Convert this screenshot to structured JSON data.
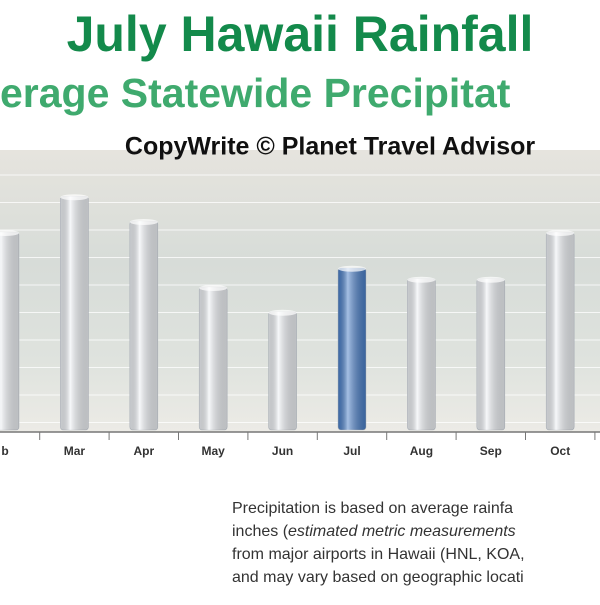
{
  "chart_data": {
    "type": "bar",
    "title": "July Hawaii Rainfall",
    "subtitle": "erage Statewide Precipitat",
    "copyright": "CopyWrite © Planet Travel Advisor",
    "categories": [
      "b",
      "Mar",
      "Apr",
      "May",
      "Jun",
      "Jul",
      "Aug",
      "Sep",
      "Oct",
      null
    ],
    "values": [
      7.2,
      8.5,
      7.6,
      5.2,
      4.3,
      5.9,
      5.5,
      5.5,
      7.2,
      null
    ],
    "colors": [
      "#eef1f5",
      "#eef1f5",
      "#eef1f5",
      "#eef1f5",
      "#eef1f5",
      "#4a7fc8",
      "#eef1f5",
      "#eef1f5",
      "#eef1f5",
      "#eef1f5"
    ],
    "ylim": [
      0,
      10
    ],
    "grid": true
  },
  "note": {
    "lines": [
      [
        {
          "text": "Precipitation is based on average rainfa"
        }
      ],
      [
        {
          "text": "inches ("
        },
        {
          "text": "estimated metric measurements",
          "italic": true
        }
      ],
      [
        {
          "text": "from major airports in Hawaii (HNL, KOA,"
        }
      ],
      [
        {
          "text": "and may vary based on geographic locati"
        }
      ]
    ]
  }
}
